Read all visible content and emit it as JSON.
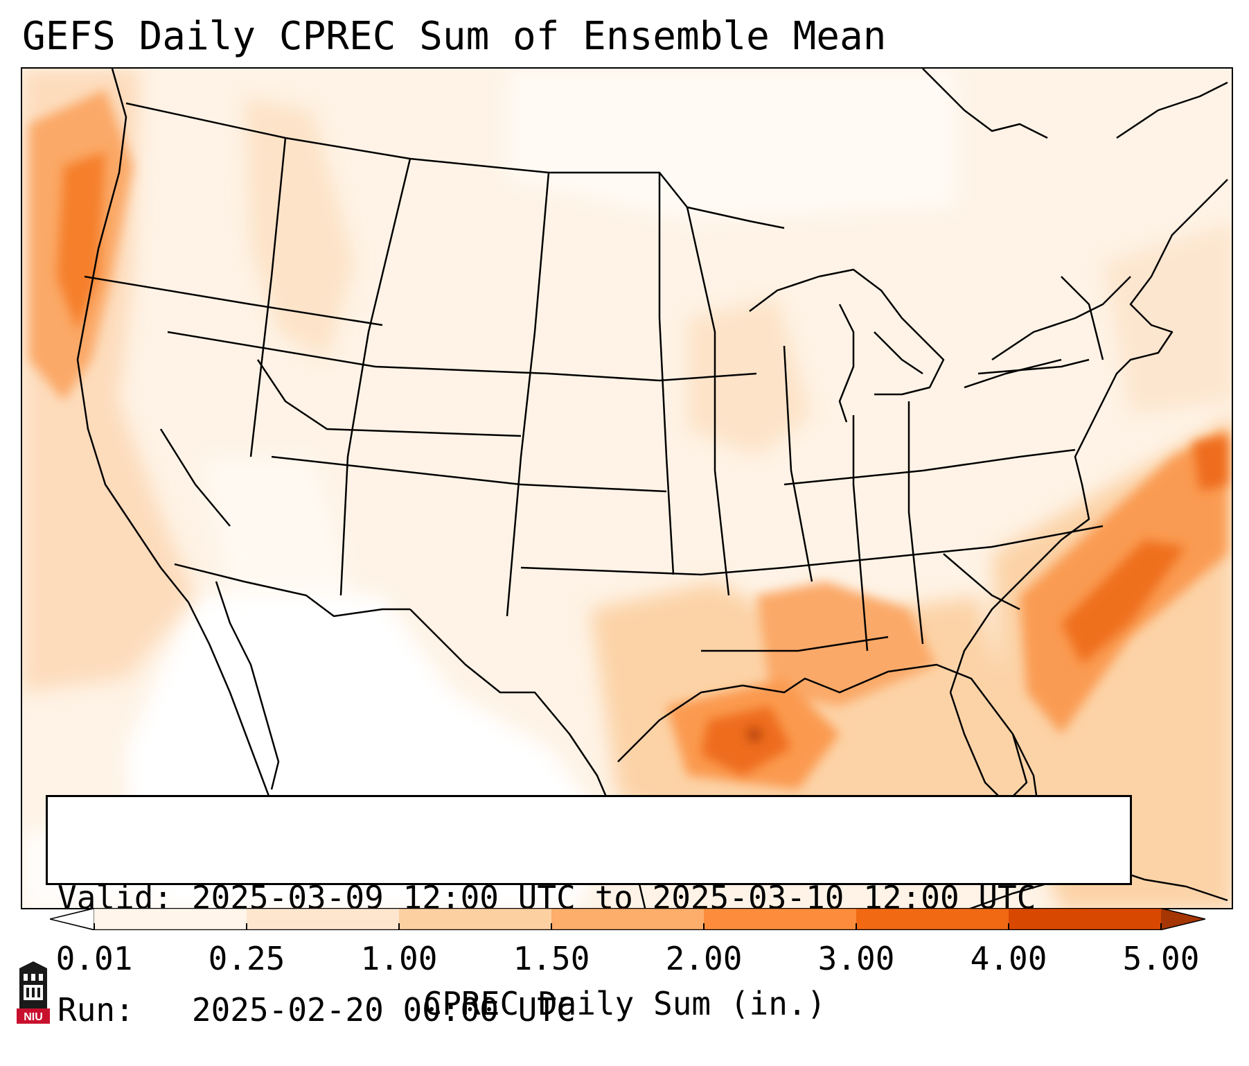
{
  "title": "GEFS Daily CPREC Sum of Ensemble Mean",
  "validity": {
    "valid_label": "Valid:",
    "valid_value": "2025-03-09 12:00 UTC to 2025-03-10 12:00 UTC",
    "run_label": "Run:",
    "run_value": "2025-02-20 00:00 UTC"
  },
  "colorbar": {
    "label": "CPREC Daily Sum (in.)",
    "ticks": [
      "0.01",
      "0.25",
      "1.00",
      "1.50",
      "2.00",
      "3.00",
      "4.00",
      "5.00"
    ],
    "colors": [
      "#fff5eb",
      "#fee6ce",
      "#fdd0a2",
      "#fdae6b",
      "#fd8d3c",
      "#f16913",
      "#d94801",
      "#a63603"
    ],
    "extend": "both"
  },
  "logo": {
    "text": "NIU",
    "icon": "university-tower-icon"
  },
  "map": {
    "projection": "lambert-conformal",
    "region": "Continental United States",
    "features": [
      "state-borders",
      "coastlines",
      "country-borders"
    ]
  }
}
